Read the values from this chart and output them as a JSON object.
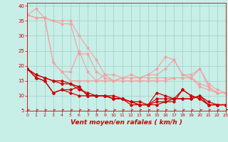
{
  "xlabel": "Vent moyen/en rafales ( km/h )",
  "xlim": [
    0,
    23
  ],
  "ylim": [
    5,
    41
  ],
  "yticks": [
    5,
    10,
    15,
    20,
    25,
    30,
    35,
    40
  ],
  "xticks": [
    0,
    1,
    2,
    3,
    4,
    5,
    6,
    7,
    8,
    9,
    10,
    11,
    12,
    13,
    14,
    15,
    16,
    17,
    18,
    19,
    20,
    21,
    22,
    23
  ],
  "bg_color": "#c8eee8",
  "grid_color": "#9dcfc4",
  "series_light": [
    {
      "x": [
        0,
        1,
        2,
        3,
        4,
        5,
        6,
        7,
        8,
        9,
        10,
        11,
        12,
        13,
        14,
        15,
        16,
        17,
        18,
        19,
        20,
        21,
        22,
        23
      ],
      "y": [
        37,
        39,
        36,
        35,
        35,
        35,
        30,
        26,
        22,
        17,
        17,
        16,
        17,
        16,
        17,
        19,
        23,
        22,
        17,
        17,
        19,
        14,
        12,
        11
      ]
    },
    {
      "x": [
        0,
        1,
        2,
        3,
        4,
        5,
        6,
        7,
        8,
        9,
        10,
        11,
        12,
        13,
        14,
        15,
        16,
        17,
        18,
        19,
        20,
        21,
        22,
        23
      ],
      "y": [
        37,
        36,
        36,
        35,
        34,
        34,
        24,
        24,
        18,
        16,
        15,
        16,
        16,
        16,
        17,
        17,
        19,
        22,
        17,
        16,
        19,
        13,
        11,
        11
      ]
    },
    {
      "x": [
        0,
        1,
        2,
        3,
        4,
        5,
        6,
        7,
        8,
        9,
        10,
        11,
        12,
        13,
        14,
        15,
        16,
        17,
        18,
        19,
        20,
        21,
        22,
        23
      ],
      "y": [
        37,
        36,
        36,
        21,
        18,
        18,
        25,
        18,
        15,
        17,
        15,
        16,
        16,
        16,
        16,
        16,
        16,
        16,
        16,
        16,
        14,
        13,
        11,
        11
      ]
    },
    {
      "x": [
        0,
        1,
        2,
        3,
        4,
        5,
        6,
        7,
        8,
        9,
        10,
        11,
        12,
        13,
        14,
        15,
        16,
        17,
        18,
        19,
        20,
        21,
        22,
        23
      ],
      "y": [
        37,
        36,
        36,
        21,
        18,
        15,
        15,
        15,
        15,
        15,
        15,
        15,
        15,
        15,
        15,
        15,
        15,
        16,
        16,
        16,
        13,
        12,
        11,
        11
      ]
    }
  ],
  "light_color": "#f4a0a0",
  "series_dark": [
    {
      "x": [
        0,
        1,
        2,
        3,
        4,
        5,
        6,
        7,
        8,
        9,
        10,
        11,
        12,
        13,
        14,
        15,
        16,
        17,
        18,
        19,
        20,
        21,
        22,
        23
      ],
      "y": [
        19,
        17,
        16,
        15,
        15,
        14,
        13,
        10,
        10,
        10,
        10,
        9,
        7,
        7,
        7,
        11,
        10,
        9,
        9,
        9,
        10,
        8,
        7,
        7
      ]
    },
    {
      "x": [
        0,
        1,
        2,
        3,
        4,
        5,
        6,
        7,
        8,
        9,
        10,
        11,
        12,
        13,
        14,
        15,
        16,
        17,
        18,
        19,
        20,
        21,
        22,
        23
      ],
      "y": [
        19,
        17,
        16,
        15,
        14,
        14,
        12,
        11,
        10,
        10,
        9,
        9,
        8,
        7,
        7,
        9,
        9,
        9,
        9,
        9,
        10,
        7,
        7,
        7
      ]
    },
    {
      "x": [
        0,
        1,
        2,
        3,
        4,
        5,
        6,
        7,
        8,
        9,
        10,
        11,
        12,
        13,
        14,
        15,
        16,
        17,
        18,
        19,
        20,
        21,
        22,
        23
      ],
      "y": [
        19,
        16,
        15,
        11,
        12,
        12,
        13,
        10,
        10,
        10,
        9,
        9,
        8,
        7,
        7,
        8,
        8,
        9,
        12,
        10,
        9,
        7,
        7,
        7
      ]
    },
    {
      "x": [
        0,
        1,
        2,
        3,
        4,
        5,
        6,
        7,
        8,
        9,
        10,
        11,
        12,
        13,
        14,
        15,
        16,
        17,
        18,
        19,
        20,
        21,
        22,
        23
      ],
      "y": [
        19,
        16,
        15,
        11,
        12,
        11,
        10,
        10,
        10,
        10,
        9,
        9,
        8,
        8,
        7,
        7,
        8,
        8,
        12,
        10,
        9,
        7,
        7,
        7
      ]
    }
  ],
  "dark_color": "#cc0000",
  "tick_color": "#cc0000",
  "xlabel_color": "#cc0000",
  "tick_size_x": 4.5,
  "tick_size_y": 5.0,
  "xlabel_size": 6.5
}
